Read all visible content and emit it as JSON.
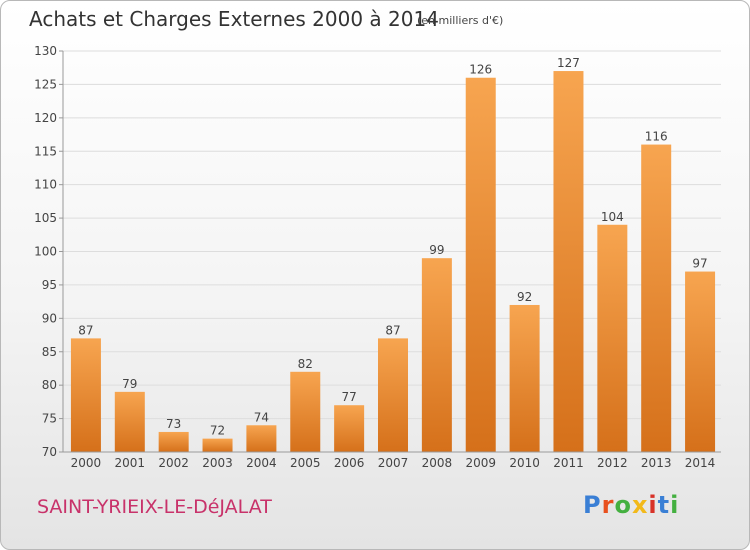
{
  "header": {
    "title": "Achats et Charges Externes 2000 à 2014",
    "subtitle": "(en milliers d'€)"
  },
  "footer": {
    "town": "SAINT-YRIEIX-LE-DéJALAT",
    "logo_text": "Proxiti",
    "logo_colors": [
      "#3a7fd5",
      "#e8501e",
      "#44b040",
      "#f2b91a",
      "#d83228",
      "#3a7fd5",
      "#44b040"
    ]
  },
  "colors": {
    "bar_light": "#f7a550",
    "bar_dark": "#d5701a",
    "grid": "#dddddd",
    "axis": "#999999",
    "label": "#444444"
  },
  "chart_data": {
    "type": "bar",
    "title": "Achats et Charges Externes 2000 à 2014",
    "subtitle": "(en milliers d'€)",
    "categories": [
      "2000",
      "2001",
      "2002",
      "2003",
      "2004",
      "2005",
      "2006",
      "2007",
      "2008",
      "2009",
      "2010",
      "2011",
      "2012",
      "2013",
      "2014"
    ],
    "values": [
      87,
      79,
      73,
      72,
      74,
      82,
      77,
      87,
      99,
      126,
      92,
      127,
      104,
      116,
      97
    ],
    "ylim": [
      70,
      130
    ],
    "yticks": [
      70,
      75,
      80,
      85,
      90,
      95,
      100,
      105,
      110,
      115,
      120,
      125,
      130
    ],
    "grid": true
  }
}
